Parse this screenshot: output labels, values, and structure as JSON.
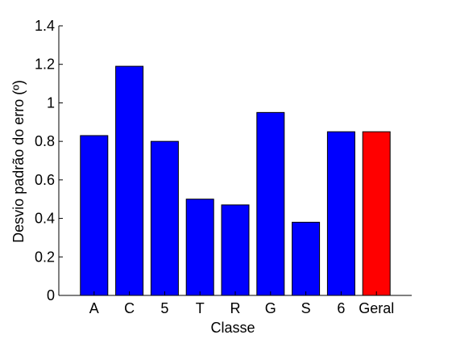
{
  "chart_data": {
    "type": "bar",
    "categories": [
      "A",
      "C",
      "5",
      "T",
      "R",
      "G",
      "S",
      "6",
      "Geral"
    ],
    "values": [
      0.83,
      1.19,
      0.8,
      0.5,
      0.47,
      0.95,
      0.38,
      0.85,
      0.85
    ],
    "bar_colors": [
      "#0000ff",
      "#0000ff",
      "#0000ff",
      "#0000ff",
      "#0000ff",
      "#0000ff",
      "#0000ff",
      "#0000ff",
      "#ff0000"
    ],
    "xlabel": "Classe",
    "ylabel": "Desvio padrão do erro (º)",
    "ylim": [
      0,
      1.4
    ],
    "yticks": [
      0,
      0.2,
      0.4,
      0.6,
      0.8,
      1,
      1.2,
      1.4
    ],
    "ytick_labels": [
      "0",
      "0.2",
      "0.4",
      "0.6",
      "0.8",
      "1",
      "1.2",
      "1.4"
    ],
    "grid": false,
    "bar_edge_color": "#000000"
  }
}
